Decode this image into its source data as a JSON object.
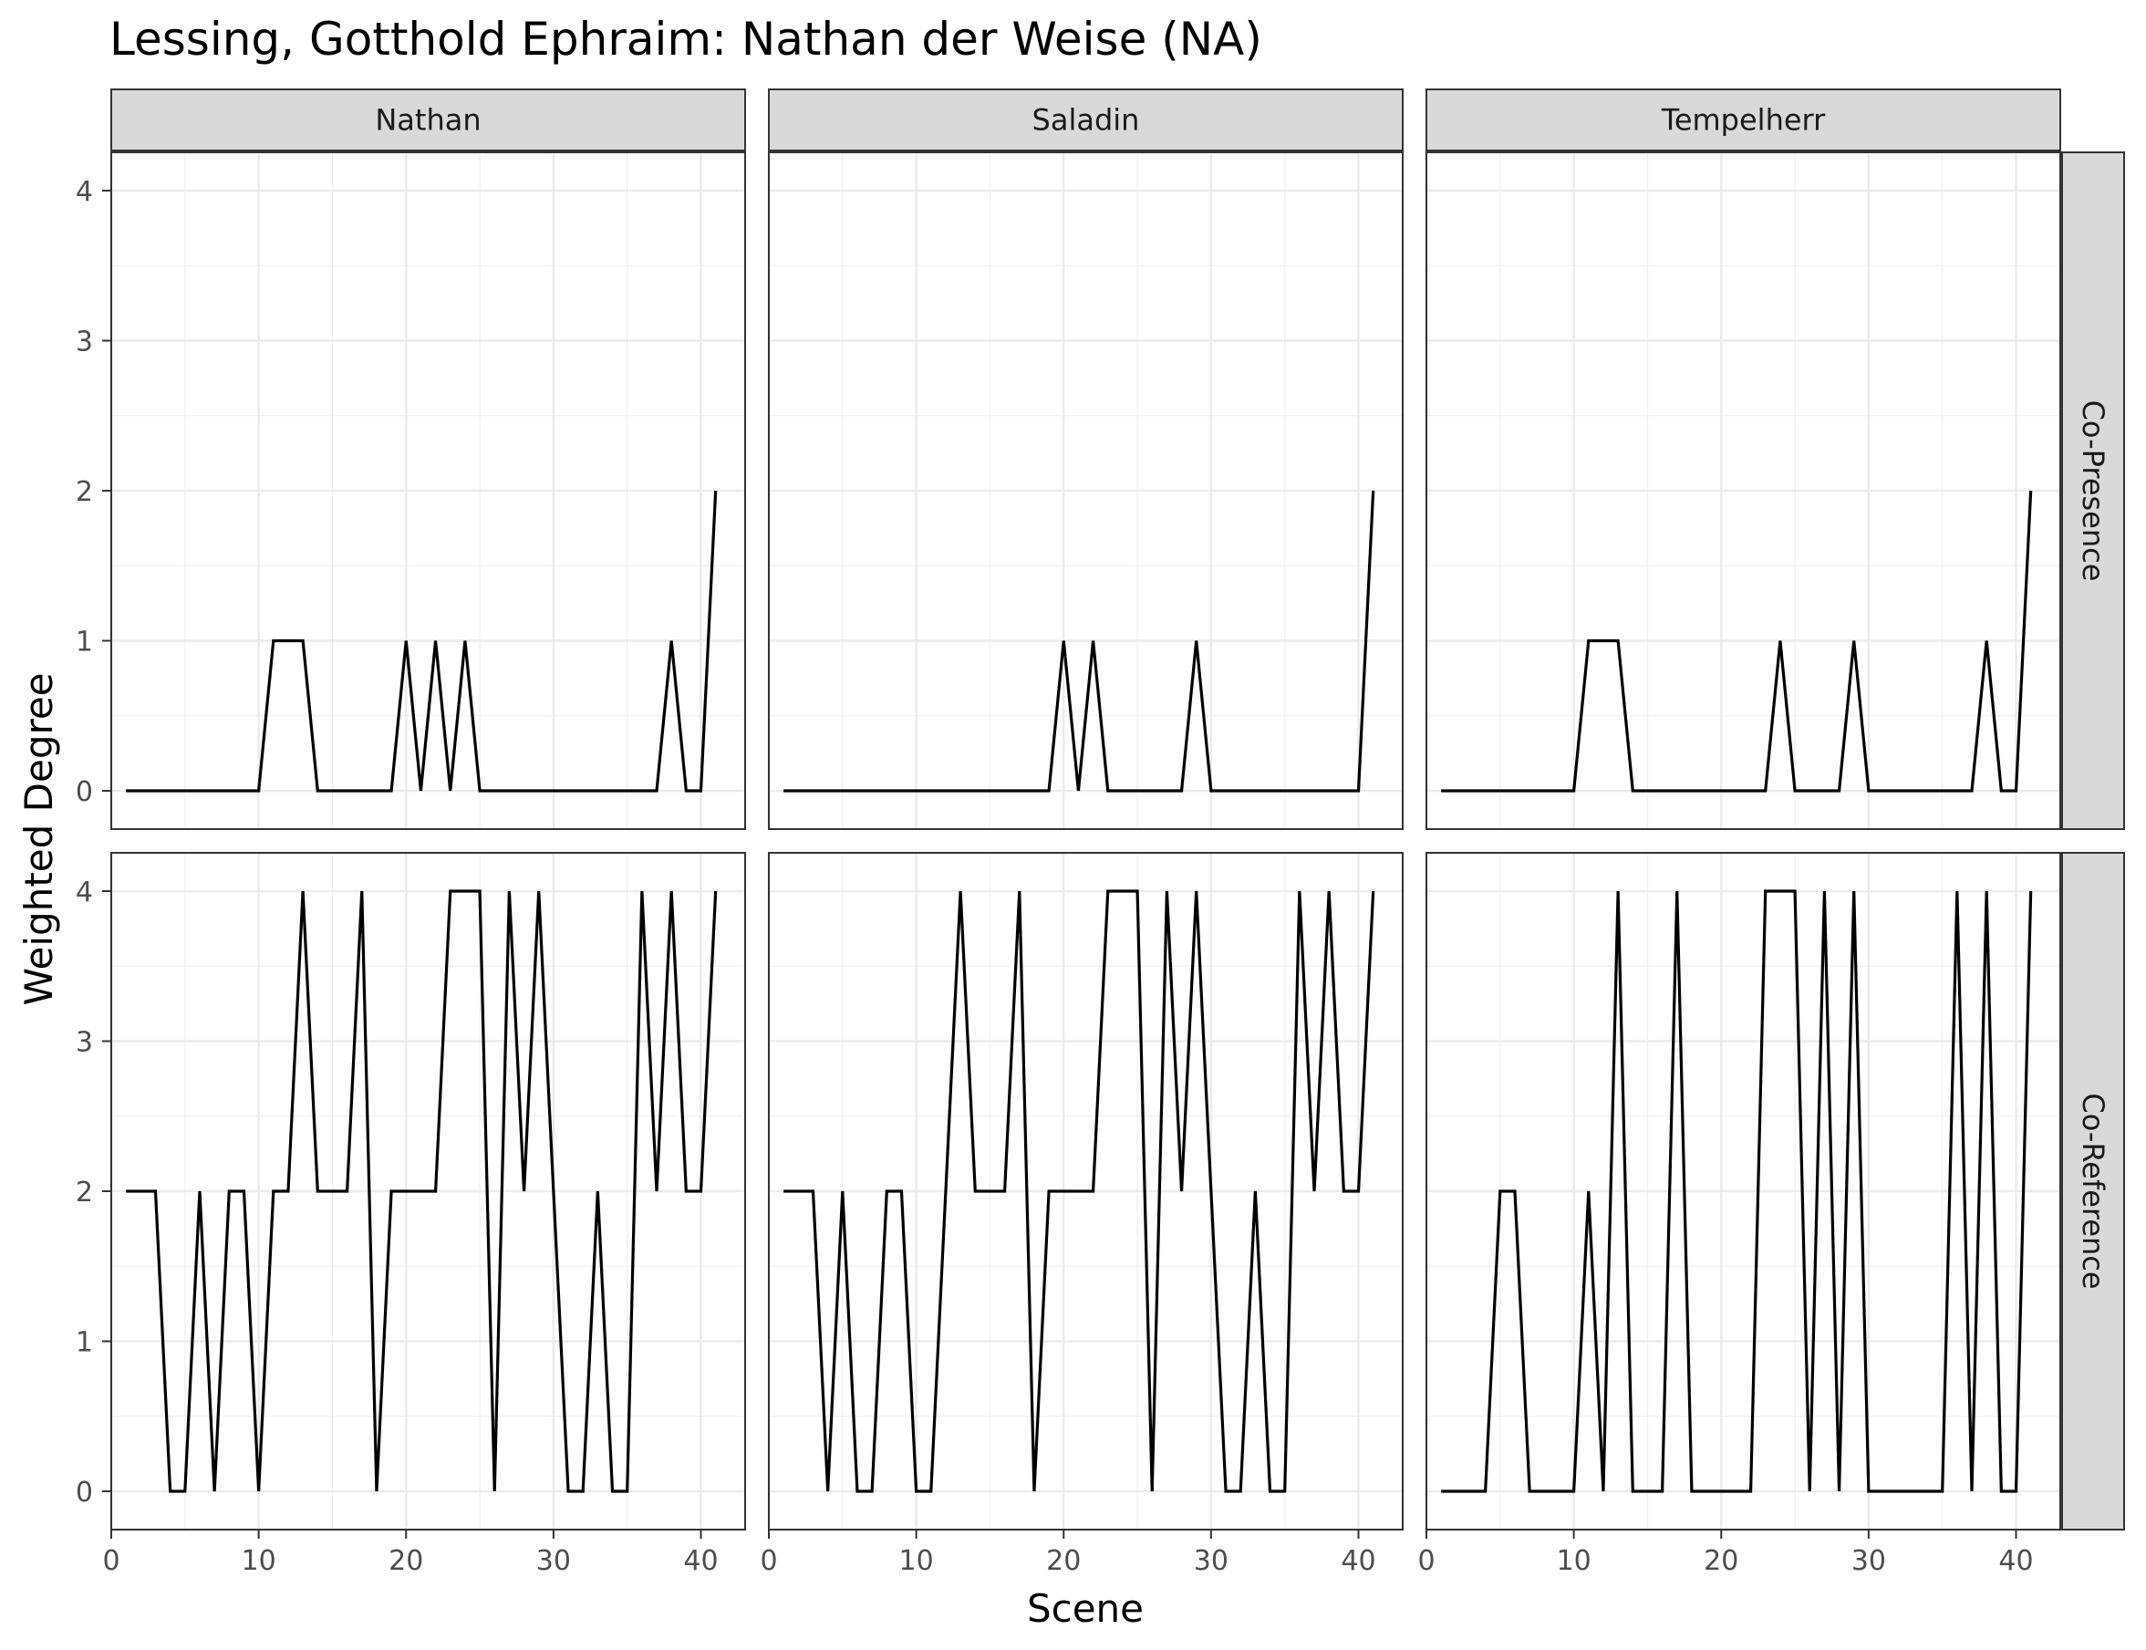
{
  "chart_data": {
    "type": "line",
    "title": "Lessing, Gotthold Ephraim: Nathan der Weise (NA)",
    "xlabel": "Scene",
    "ylabel": "Weighted Degree",
    "xlim": [
      0,
      43
    ],
    "ylim": [
      0,
      4
    ],
    "xticks": [
      0,
      10,
      20,
      30,
      40
    ],
    "yticks": [
      0,
      1,
      2,
      3,
      4
    ],
    "grid": true,
    "columns": [
      "Nathan",
      "Saladin",
      "Tempelherr"
    ],
    "rows": [
      "Co-Presence",
      "Co-Reference"
    ],
    "x": [
      1,
      2,
      3,
      4,
      5,
      6,
      7,
      8,
      9,
      10,
      11,
      12,
      13,
      14,
      15,
      16,
      17,
      18,
      19,
      20,
      21,
      22,
      23,
      24,
      25,
      26,
      27,
      28,
      29,
      30,
      31,
      32,
      33,
      34,
      35,
      36,
      37,
      38,
      39,
      40,
      41
    ],
    "panels": [
      {
        "column": "Nathan",
        "row": "Co-Presence",
        "values": [
          0,
          0,
          0,
          0,
          0,
          0,
          0,
          0,
          0,
          0,
          1,
          1,
          1,
          0,
          0,
          0,
          0,
          0,
          0,
          1,
          0,
          1,
          0,
          1,
          0,
          0,
          0,
          0,
          0,
          0,
          0,
          0,
          0,
          0,
          0,
          0,
          0,
          1,
          0,
          0,
          2
        ]
      },
      {
        "column": "Saladin",
        "row": "Co-Presence",
        "values": [
          0,
          0,
          0,
          0,
          0,
          0,
          0,
          0,
          0,
          0,
          0,
          0,
          0,
          0,
          0,
          0,
          0,
          0,
          0,
          1,
          0,
          1,
          0,
          0,
          0,
          0,
          0,
          0,
          1,
          0,
          0,
          0,
          0,
          0,
          0,
          0,
          0,
          0,
          0,
          0,
          2
        ]
      },
      {
        "column": "Tempelherr",
        "row": "Co-Presence",
        "values": [
          0,
          0,
          0,
          0,
          0,
          0,
          0,
          0,
          0,
          0,
          1,
          1,
          1,
          0,
          0,
          0,
          0,
          0,
          0,
          0,
          0,
          0,
          0,
          1,
          0,
          0,
          0,
          0,
          1,
          0,
          0,
          0,
          0,
          0,
          0,
          0,
          0,
          1,
          0,
          0,
          2
        ]
      },
      {
        "column": "Nathan",
        "row": "Co-Reference",
        "values": [
          2,
          2,
          2,
          0,
          0,
          2,
          0,
          2,
          2,
          0,
          2,
          2,
          4,
          2,
          2,
          2,
          4,
          0,
          2,
          2,
          2,
          2,
          4,
          4,
          4,
          0,
          4,
          2,
          4,
          2,
          0,
          0,
          2,
          0,
          0,
          4,
          2,
          4,
          2,
          2,
          4
        ]
      },
      {
        "column": "Saladin",
        "row": "Co-Reference",
        "values": [
          2,
          2,
          2,
          0,
          2,
          0,
          0,
          2,
          2,
          0,
          0,
          2,
          4,
          2,
          2,
          2,
          4,
          0,
          2,
          2,
          2,
          2,
          4,
          4,
          4,
          0,
          4,
          2,
          4,
          2,
          0,
          0,
          2,
          0,
          0,
          4,
          2,
          4,
          2,
          2,
          4
        ]
      },
      {
        "column": "Tempelherr",
        "row": "Co-Reference",
        "values": [
          0,
          0,
          0,
          0,
          2,
          2,
          0,
          0,
          0,
          0,
          2,
          0,
          4,
          0,
          0,
          0,
          4,
          0,
          0,
          0,
          0,
          0,
          4,
          4,
          4,
          0,
          4,
          0,
          4,
          0,
          0,
          0,
          0,
          0,
          0,
          4,
          0,
          4,
          0,
          0,
          4
        ]
      }
    ]
  }
}
